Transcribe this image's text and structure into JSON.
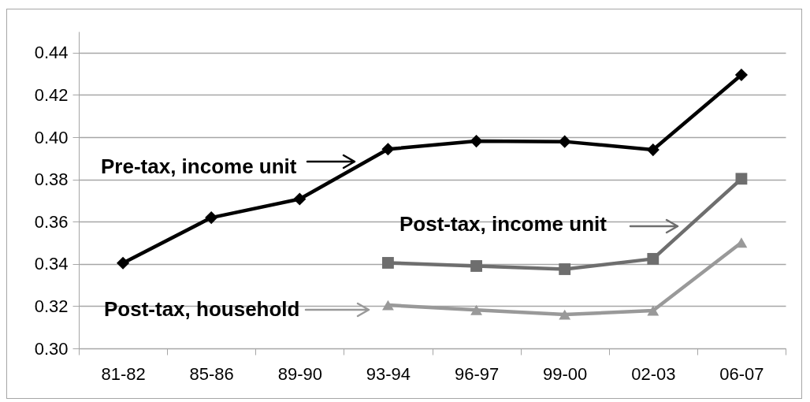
{
  "chart_data": {
    "type": "line",
    "categories": [
      "81-82",
      "85-86",
      "89-90",
      "93-94",
      "96-97",
      "99-00",
      "02-03",
      "06-07"
    ],
    "series": [
      {
        "name": "Pre-tax, income unit",
        "color": "#000000",
        "marker": "diamond",
        "values": [
          0.3404,
          0.3619,
          0.3707,
          0.3943,
          0.3981,
          0.3979,
          0.394,
          0.4295
        ]
      },
      {
        "name": "Post-tax, income unit",
        "color": "#6e6e6e",
        "marker": "square",
        "values": [
          null,
          null,
          null,
          0.3405,
          0.339,
          0.3375,
          0.3424,
          0.3803
        ]
      },
      {
        "name": "Post-tax, household",
        "color": "#999999",
        "marker": "triangle",
        "values": [
          null,
          null,
          null,
          0.3205,
          0.3182,
          0.316,
          0.3179,
          0.3501
        ]
      }
    ],
    "ylim": [
      0.3,
      0.45
    ],
    "yticks": [
      {
        "value": 0.3,
        "label": "0.30"
      },
      {
        "value": 0.32,
        "label": "0.32"
      },
      {
        "value": 0.34,
        "label": "0.34"
      },
      {
        "value": 0.36,
        "label": "0.36"
      },
      {
        "value": 0.38,
        "label": "0.38"
      },
      {
        "value": 0.4,
        "label": "0.40"
      },
      {
        "value": 0.42,
        "label": "0.42"
      },
      {
        "value": 0.44,
        "label": "0.44"
      }
    ],
    "grid": "y",
    "legend": "left"
  }
}
